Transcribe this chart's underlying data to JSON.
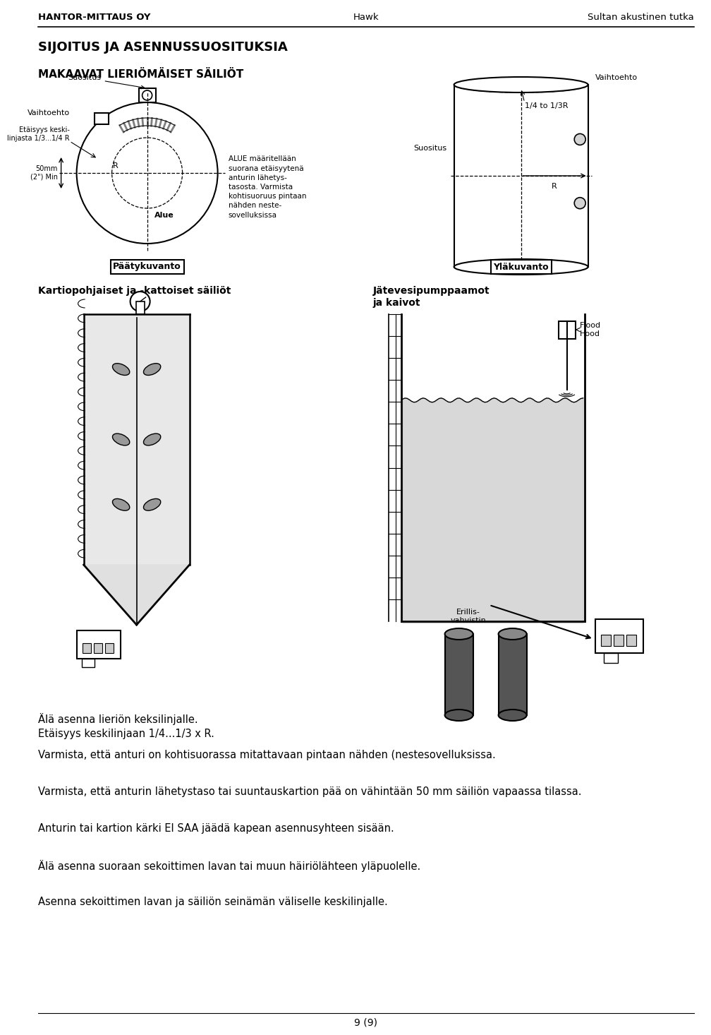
{
  "header_left": "HANTOR-MITTAUS OY",
  "header_center": "Hawk",
  "header_right": "Sultan akustinen tutka",
  "section_title": "SIJOITUS JA ASENNUSSUOSITUKSIA",
  "subsection1_title": "MAKAAVAT LIERIÖMÄISET SÄILIÖT",
  "footer_text": "9 (9)",
  "background_color": "#ffffff",
  "text_color": "#000000",
  "paragraphs": [
    "Älä asenna lieriön keksilinjalle.\nEtäisyys keskilinjaan 1/4...1/3 x R.",
    "Varmista, että anturi on kohtisuorassa mitattavaan pintaan nähden (nestesovelluksissa.",
    "Varmista, että anturin lähetystaso tai suuntauskartion pää on vähintään 50 mm säiliön vapaassa tilassa.",
    "Anturin tai kartion kärki EI SAA jäädä kapean asennusyhteen sisään.",
    "Älä asenna suoraan sekoittimen lavan tai muun häiriölähteen yläpuolelle.",
    "Asenna sekoittimen lavan ja säiliön seinämän väliselle keskilinjalle."
  ],
  "diagram1_left_label_suositus": "Suositus",
  "diagram1_left_label_vaihtoehto": "Vaihtoehto",
  "diagram1_left_label_etaisyys": "Etäisyys keski-\nlinjasta 1/3...1/4 R",
  "diagram1_left_label_alue": "Alue",
  "diagram1_left_label_alue_desc": "ALUE määritellään\nsuorana etäisyytenä\nanturin lähetys-\ntasosta. Varmista\nkohtisuoruus pintaan\nnähden neste-\nsovelluksissa",
  "diagram1_left_label_dim": "50mm\n(2\") Min",
  "diagram1_left_label_r": "R",
  "diagram1_right_label_fraction": "1/4 to 1/3R",
  "diagram1_right_label_r": "R",
  "diagram1_right_label_vaihtoehto": "Vaihtoehto",
  "diagram1_right_label_suositus": "Suositus",
  "diagram1_title_left": "Päätykuvanto",
  "diagram1_title_right": "Yläkuvanto",
  "diagram2_title": "Kartiopohjaiset ja -kattoiset säiliöt",
  "diagram3_title": "Jätevesipumppaamot\nja kaivot",
  "diagram3_flood_hood": "Flood\nHood",
  "diagram3_erillis": "Erillis-\nvahvistin"
}
